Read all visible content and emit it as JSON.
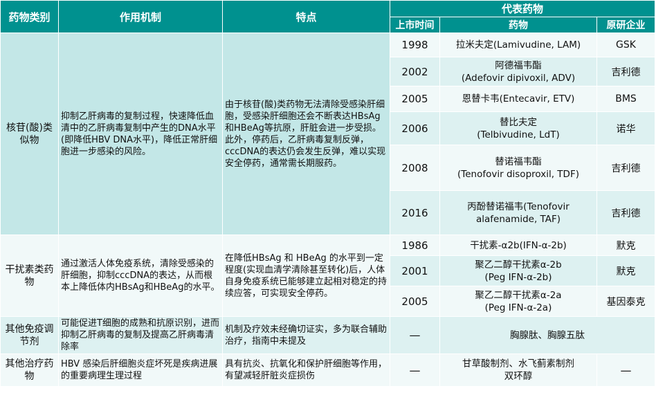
{
  "headers": {
    "category": "药物类别",
    "mechanism": "作用机制",
    "features": "特点",
    "representative": "代表药物",
    "launch_time": "上市时间",
    "drug": "药物",
    "originator": "原研企业"
  },
  "nuc": {
    "category": "核苷(酸)类似物",
    "mechanism": "抑制乙肝病毒的复制过程，快速降低血清中的乙肝病毒复制中产生的DNA水平(即降低HBV DNA水平)，降低正常肝细胞进一步感染的风险。",
    "features": "由于核苷(酸)类药物无法清除受感染肝细胞，受感染肝细胞还会不断表达HBsAg和HBeAg等抗原，肝脏会进一步受损。此外，停药后，乙肝病毒复制反弹，cccDNA的表达仍会发生反弹，难以实现安全停药，通常需长期服药。",
    "drugs": [
      {
        "year": "1998",
        "name": "拉米夫定(Lamivudine, LAM)",
        "company": "GSK"
      },
      {
        "year": "2002",
        "name": "阿德福韦酯",
        "name2": "(Adefovir dipivoxil, ADV)",
        "company": "吉利德"
      },
      {
        "year": "2005",
        "name": "恩替卡韦(Entecavir, ETV)",
        "company": "BMS"
      },
      {
        "year": "2006",
        "name": "替比夫定",
        "name2": "(Telbivudine, LdT)",
        "company": "诺华"
      },
      {
        "year": "2008",
        "name": "替诺福韦酯",
        "name2": "(Tenofovir disoproxil, TDF)",
        "company": "吉利德"
      },
      {
        "year": "2016",
        "name": "丙酚替诺福韦(Tenofovir",
        "name2": "alafenamide, TAF)",
        "company": "吉利德"
      }
    ]
  },
  "ifn": {
    "category": "干扰素类药物",
    "mechanism": "通过激活人体免疫系统，清除受感染的肝细胞，抑制cccDNA的表达，从而根本上降低体内HBsAg和HBeAg的水平。",
    "features": "在降低HBsAg 和 HBeAg 的水平到一定程度(实现血清学清除甚至转化)后，人体自身免疫系统已能够建立起相对稳定的持续应答，可实现安全停药。",
    "drugs": [
      {
        "year": "1986",
        "name": "干扰素-α2b(IFN-α-2b)",
        "company": "默克"
      },
      {
        "year": "2001",
        "name": "聚乙二醇干扰素α-2b",
        "name2": "(Peg IFN-α-2b)",
        "company": "默克"
      },
      {
        "year": "2005",
        "name": "聚乙二醇干扰素α-2a",
        "name2": "(Peg IFN-α-2a)",
        "company": "基因泰克"
      }
    ]
  },
  "immuno": {
    "category": "其他免疫调节剂",
    "mechanism": "可能促进T细胞的成熟和抗原识别，进而抑制乙肝病毒的复制及提高乙肝病毒清除率",
    "features": "机制及疗效未经确切证实，多为联合辅助治疗，指南中未提及",
    "year": "—",
    "drug": "胸腺肽、胸腺五肽"
  },
  "other": {
    "category": "其他治疗药物",
    "mechanism": "HBV 感染后肝细胞炎症坏死是疾病进展的重要病理生理过程",
    "features": "具有抗炎、抗氧化和保护肝细胞等作用，有望减轻肝脏炎症损伤",
    "year": "—",
    "drug": "甘草酸制剂、水飞蓟素制剂",
    "drug2": "双环醇",
    "company": "—"
  }
}
